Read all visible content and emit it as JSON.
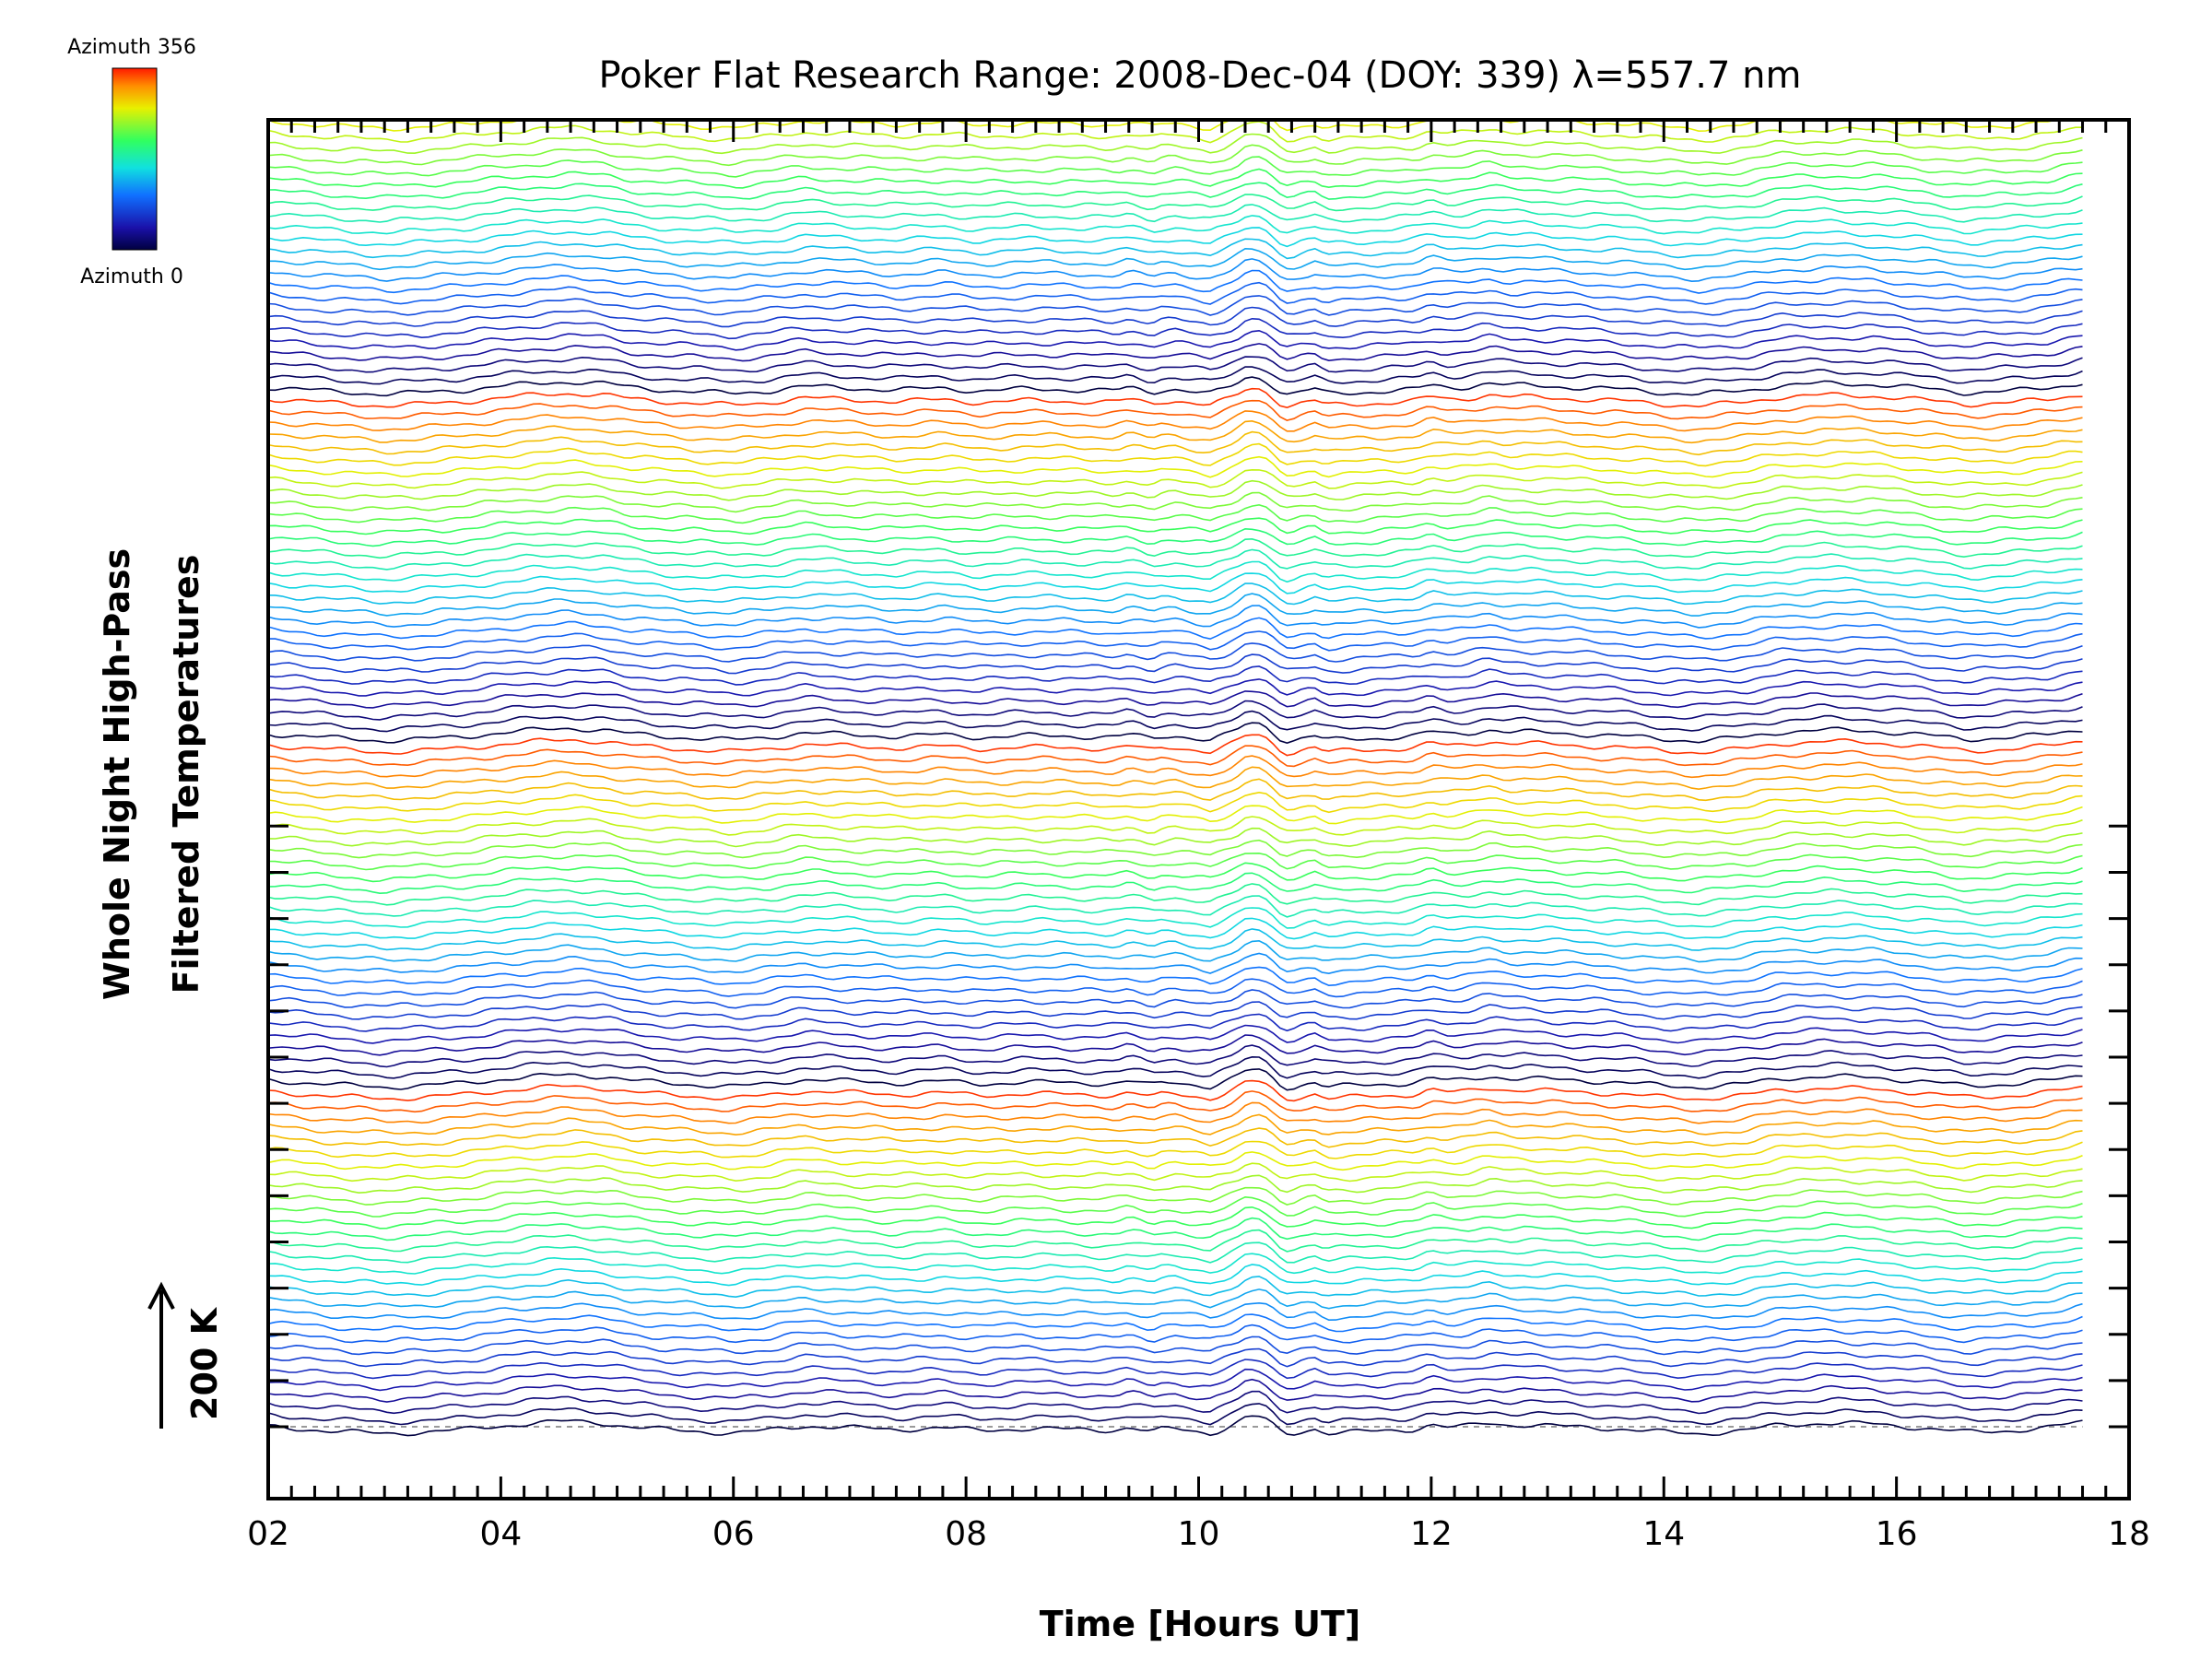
{
  "chart_data": {
    "type": "line",
    "title": "Poker Flat Research Range: 2008-Dec-04 (DOY: 339) λ=557.7 nm",
    "xlabel": "Time [Hours UT]",
    "ylabel_line1": "Whole Night High-Pass",
    "ylabel_line2": "Filtered Temperatures",
    "xlim": [
      2,
      18
    ],
    "x_ticks": [
      "02",
      "04",
      "06",
      "08",
      "10",
      "12",
      "14",
      "16",
      "18"
    ],
    "data_range": [
      2.0,
      17.6
    ],
    "scale_bar": {
      "label": "200 K",
      "value_K": 200
    },
    "colorbar": {
      "top_label": "Azimuth 356",
      "bottom_label": "Azimuth 0",
      "min": 0,
      "max": 356,
      "colormap": "rainbow"
    },
    "series_count": 120,
    "series_spacing_K": 25,
    "azimuth_step_deg": 12,
    "azimuths_per_cycle": 30,
    "baseline_style": "dashed gray",
    "base_profile": {
      "t": [
        2.0,
        2.3,
        2.6,
        3.0,
        3.3,
        3.7,
        4.0,
        4.3,
        4.6,
        4.9,
        5.1,
        5.4,
        5.7,
        6.0,
        6.3,
        6.6,
        7.0,
        7.4,
        7.8,
        8.1,
        8.5,
        9.0,
        9.4,
        9.8,
        10.1,
        10.4,
        10.6,
        10.9,
        11.1,
        11.5,
        12.0,
        12.4,
        12.8,
        13.2,
        13.6,
        14.0,
        14.3,
        14.7,
        15.0,
        15.4,
        15.8,
        16.2,
        16.6,
        17.0,
        17.3,
        17.6
      ],
      "T": [
        0,
        -5,
        -10,
        -15,
        -12,
        -6,
        2,
        8,
        12,
        8,
        0,
        -6,
        -10,
        -14,
        -8,
        2,
        -2,
        -6,
        -2,
        -8,
        -4,
        -6,
        -8,
        -4,
        -14,
        10,
        6,
        -6,
        -14,
        -10,
        -4,
        2,
        4,
        0,
        -4,
        -12,
        -15,
        -8,
        4,
        8,
        6,
        -2,
        -12,
        -8,
        -2,
        10
      ]
    },
    "bumps": [
      {
        "t": 9.4,
        "amp": 6,
        "width": 0.08
      },
      {
        "t": 9.6,
        "amp": -5,
        "width": 0.06
      },
      {
        "t": 10.5,
        "amp": 14,
        "width": 0.15
      },
      {
        "t": 10.75,
        "amp": -16,
        "width": 0.12
      },
      {
        "t": 11.0,
        "amp": 6,
        "width": 0.06
      },
      {
        "t": 12.0,
        "amp": 8,
        "width": 0.1
      },
      {
        "t": 12.5,
        "amp": 6,
        "width": 0.12
      }
    ]
  }
}
